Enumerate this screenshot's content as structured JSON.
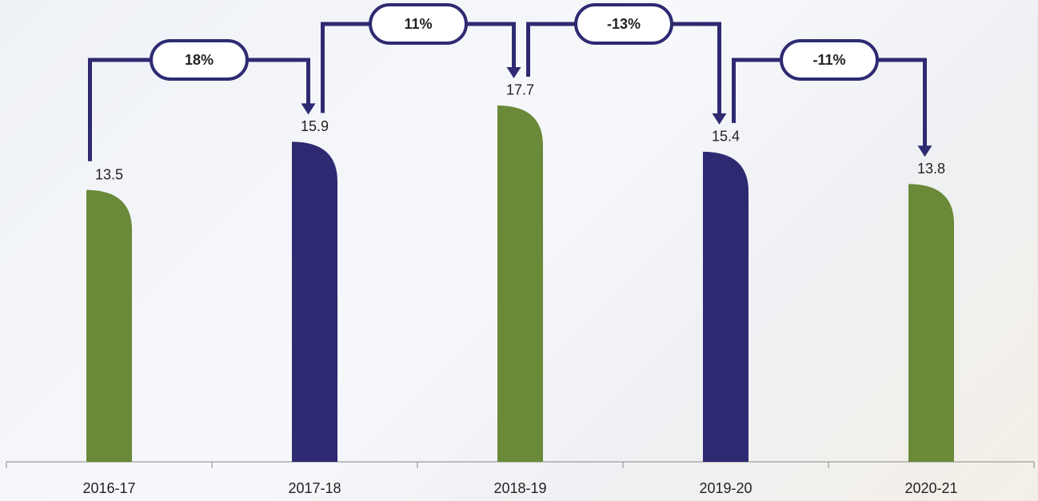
{
  "chart_data": {
    "type": "bar",
    "categories": [
      "2016-17",
      "2017-18",
      "2018-19",
      "2019-20",
      "2020-21"
    ],
    "values": [
      13.5,
      15.9,
      17.7,
      15.4,
      13.8
    ],
    "colors": [
      "#6a8a3a",
      "#2e2a72",
      "#6a8a3a",
      "#2e2a72",
      "#6a8a3a"
    ],
    "connector_color": "#2e2a72",
    "changes": [
      "18%",
      "11%",
      "-13%",
      "-11%"
    ]
  }
}
